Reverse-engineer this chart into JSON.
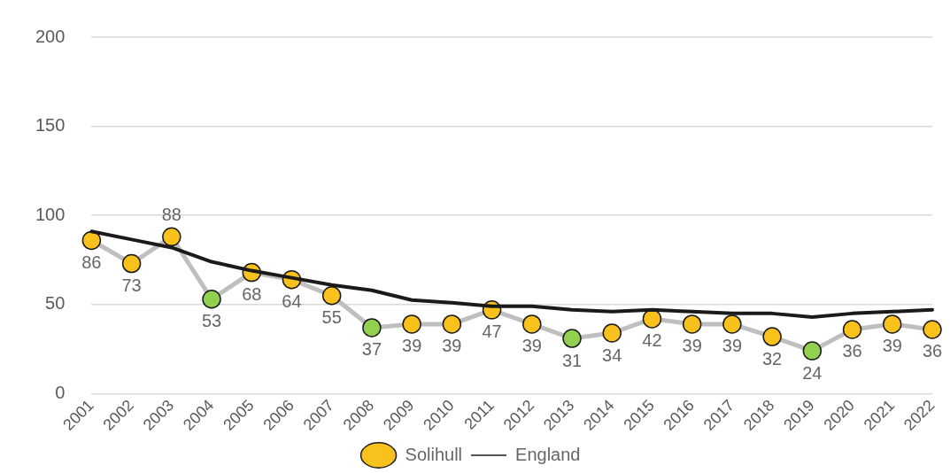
{
  "chart_data": {
    "type": "line",
    "categories": [
      "2001",
      "2002",
      "2003",
      "2004",
      "2005",
      "2006",
      "2007",
      "2008",
      "2009",
      "2010",
      "2011",
      "2012",
      "2013",
      "2014",
      "2015",
      "2016",
      "2017",
      "2018",
      "2019",
      "2020",
      "2021",
      "2022"
    ],
    "series": [
      {
        "name": "Solihull",
        "color": "#bfbfbf",
        "colors": [
          "#f9c11c",
          "#f9c11c",
          "#f9c11c",
          "#92d050",
          "#f9c11c",
          "#f9c11c",
          "#f9c11c",
          "#92d050",
          "#f9c11c",
          "#f9c11c",
          "#f9c11c",
          "#f9c11c",
          "#92d050",
          "#f9c11c",
          "#f9c11c",
          "#f9c11c",
          "#f9c11c",
          "#f9c11c",
          "#92d050",
          "#f9c11c",
          "#f9c11c",
          "#f9c11c"
        ],
        "marker": "circle",
        "values": [
          86,
          73,
          88,
          53,
          68,
          64,
          55,
          37,
          39,
          39,
          47,
          39,
          31,
          34,
          42,
          39,
          39,
          32,
          24,
          36,
          39,
          36
        ],
        "data_labels": true
      },
      {
        "name": "England",
        "color": "#1a1a1a",
        "marker": "none",
        "values": [
          91,
          86.5,
          82,
          74,
          69,
          65,
          61,
          58,
          52.5,
          51,
          49,
          49,
          47,
          46,
          47,
          46,
          45,
          45,
          43,
          45,
          46,
          47
        ]
      }
    ],
    "ylim": [
      0,
      200
    ],
    "yticks": [
      0,
      50,
      100,
      150,
      200
    ],
    "grid": "y",
    "legend": "bottom"
  }
}
